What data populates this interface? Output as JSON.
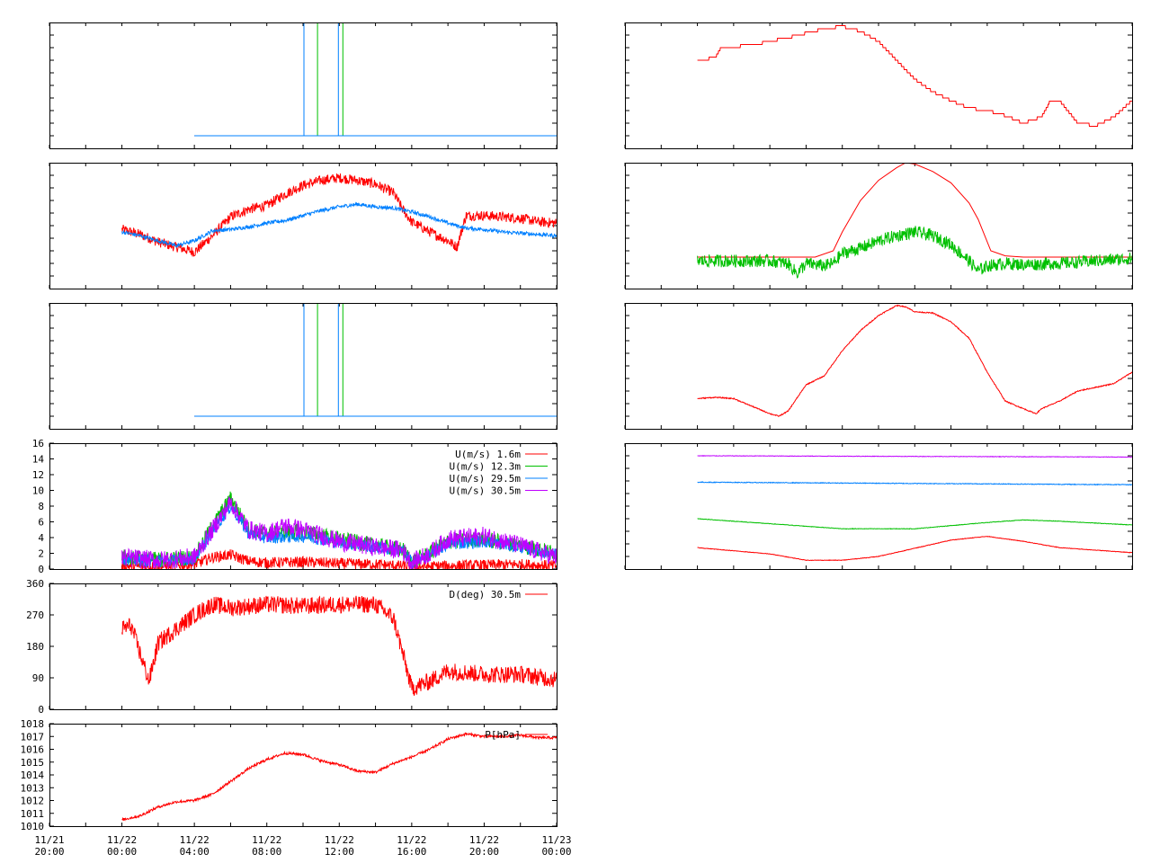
{
  "colors": {
    "red": "#ff0000",
    "green": "#00c000",
    "blue": "#0080ff",
    "purple": "#c000ff",
    "axis": "#000000",
    "background": "#ffffff"
  },
  "x_axis": {
    "tick_labels": [
      [
        "11/21",
        "20:00"
      ],
      [
        "11/22",
        "00:00"
      ],
      [
        "11/22",
        "04:00"
      ],
      [
        "11/22",
        "08:00"
      ],
      [
        "11/22",
        "12:00"
      ],
      [
        "11/22",
        "16:00"
      ],
      [
        "11/22",
        "20:00"
      ],
      [
        "11/23",
        "00:00"
      ]
    ]
  },
  "chart_data": [
    {
      "id": "left1",
      "type": "line",
      "xlim": [
        -4,
        24
      ],
      "ylim": [
        0,
        1
      ],
      "series": [
        {
          "color": "red",
          "x": [
            4,
            10.1,
            10.1,
            11.0,
            11.0,
            24
          ],
          "y": [
            0.1,
            0.1,
            0.1,
            0.1,
            0.1,
            0.1
          ]
        },
        {
          "color": "green",
          "x": [
            10.8,
            10.8,
            10.8,
            12.2,
            12.2,
            12.2
          ],
          "y": [
            0.1,
            1.0,
            0.1,
            0.1,
            1.0,
            0.1
          ]
        },
        {
          "color": "blue",
          "x": [
            4,
            10.05,
            10.05,
            10.05,
            11.95,
            11.95,
            11.95,
            24
          ],
          "y": [
            0.1,
            0.1,
            1.0,
            0.1,
            0.1,
            1.0,
            0.1,
            0.1
          ]
        }
      ]
    },
    {
      "id": "left2",
      "type": "line",
      "xlim": [
        -4,
        24
      ],
      "ylim": [
        0,
        1
      ],
      "series": [
        {
          "color": "red",
          "noise": 0.04,
          "x": [
            0,
            1,
            2,
            3,
            4,
            5,
            6,
            7,
            8,
            9,
            10,
            11,
            12,
            13,
            14,
            15,
            15.5,
            16,
            17,
            18,
            18.5,
            19,
            20,
            21,
            22,
            23,
            24
          ],
          "y": [
            0.47,
            0.43,
            0.37,
            0.33,
            0.29,
            0.42,
            0.57,
            0.63,
            0.66,
            0.75,
            0.82,
            0.86,
            0.88,
            0.86,
            0.83,
            0.76,
            0.63,
            0.53,
            0.45,
            0.38,
            0.33,
            0.58,
            0.58,
            0.57,
            0.56,
            0.53,
            0.52
          ]
        },
        {
          "color": "blue",
          "noise": 0.015,
          "x": [
            0,
            1,
            2,
            3,
            4,
            5,
            6,
            7,
            8,
            9,
            10,
            11,
            12,
            13,
            14,
            15,
            16,
            17,
            18,
            19,
            20,
            21,
            22,
            23,
            24
          ],
          "y": [
            0.45,
            0.42,
            0.38,
            0.34,
            0.38,
            0.46,
            0.47,
            0.49,
            0.52,
            0.54,
            0.58,
            0.62,
            0.65,
            0.67,
            0.65,
            0.64,
            0.61,
            0.57,
            0.52,
            0.48,
            0.47,
            0.45,
            0.44,
            0.43,
            0.42
          ]
        }
      ]
    },
    {
      "id": "left3",
      "type": "line",
      "xlim": [
        -4,
        24
      ],
      "ylim": [
        0,
        1
      ],
      "series": [
        {
          "color": "red",
          "x": [
            4,
            10.1,
            10.1,
            11.0,
            11.0,
            24
          ],
          "y": [
            0.1,
            0.1,
            0.1,
            0.1,
            0.1,
            0.1
          ]
        },
        {
          "color": "green",
          "x": [
            10.8,
            10.8,
            10.8,
            12.2,
            12.2,
            12.2
          ],
          "y": [
            0.1,
            1.0,
            0.1,
            0.1,
            1.0,
            0.1
          ]
        },
        {
          "color": "blue",
          "x": [
            4,
            10.05,
            10.05,
            10.05,
            11.95,
            11.95,
            11.95,
            24
          ],
          "y": [
            0.1,
            0.1,
            1.0,
            0.1,
            0.1,
            1.0,
            0.1,
            0.1
          ]
        }
      ]
    },
    {
      "id": "left4",
      "type": "line",
      "xlim": [
        -4,
        24
      ],
      "ylim": [
        0,
        16
      ],
      "y_ticks": [
        0,
        2,
        4,
        6,
        8,
        10,
        12,
        14,
        16
      ],
      "legend_position": "top-right",
      "series": [
        {
          "name": "U(m/s)  1.6m",
          "color": "red",
          "noise": 0.7,
          "x": [
            0,
            2,
            4,
            5,
            6,
            7,
            8,
            10,
            12,
            14,
            16,
            18,
            20,
            22,
            24
          ],
          "y": [
            0.4,
            0.3,
            0.6,
            1.5,
            1.8,
            1.0,
            0.8,
            0.9,
            0.7,
            0.6,
            0.3,
            0.4,
            0.5,
            0.6,
            0.4
          ]
        },
        {
          "name": "U(m/s) 12.3m",
          "color": "green",
          "noise": 1.0,
          "x": [
            0,
            2,
            4,
            5,
            6,
            7,
            8,
            10,
            12,
            14,
            15.5,
            16,
            17,
            18,
            20,
            22,
            24
          ],
          "y": [
            1.5,
            1.2,
            1.5,
            5.5,
            9.0,
            5.0,
            4.5,
            4.8,
            3.8,
            3.0,
            2.5,
            1.0,
            2.0,
            3.5,
            3.8,
            3.0,
            2.0
          ]
        },
        {
          "name": "U(m/s) 29.5m",
          "color": "blue",
          "noise": 0.8,
          "x": [
            0,
            2,
            4,
            5,
            6,
            7,
            8,
            10,
            12,
            14,
            15.5,
            16,
            17,
            18,
            20,
            22,
            24
          ],
          "y": [
            1.3,
            1.0,
            1.3,
            4.8,
            8.0,
            4.5,
            4.0,
            4.2,
            3.4,
            2.8,
            2.3,
            0.9,
            1.8,
            3.2,
            3.5,
            2.8,
            1.8
          ]
        },
        {
          "name": "U(m/s) 30.5m",
          "color": "purple",
          "noise": 1.2,
          "x": [
            0,
            2,
            4,
            5,
            6,
            7,
            8,
            9,
            10,
            12,
            14,
            15.5,
            16,
            17,
            18,
            20,
            22,
            24
          ],
          "y": [
            1.5,
            1.1,
            1.5,
            5.0,
            8.5,
            5.0,
            4.5,
            5.5,
            5.0,
            3.5,
            2.8,
            2.4,
            0.8,
            2.0,
            3.8,
            4.2,
            3.0,
            1.5
          ]
        }
      ]
    },
    {
      "id": "left5",
      "type": "line",
      "xlim": [
        -4,
        24
      ],
      "ylim": [
        0,
        360
      ],
      "y_ticks": [
        0,
        90,
        180,
        270,
        360
      ],
      "legend_position": "top-right",
      "series": [
        {
          "name": "D(deg)  30.5m",
          "color": "red",
          "noise": 25,
          "x": [
            0,
            0.5,
            1,
            1.5,
            2,
            3,
            4,
            5,
            6,
            8,
            10,
            12,
            14,
            15,
            16,
            17,
            18,
            20,
            22,
            24
          ],
          "y": [
            230,
            240,
            160,
            80,
            190,
            230,
            270,
            300,
            290,
            300,
            295,
            300,
            300,
            260,
            60,
            80,
            110,
            100,
            100,
            85
          ]
        }
      ]
    },
    {
      "id": "left6",
      "type": "line",
      "xlim": [
        -4,
        24
      ],
      "ylim": [
        1010,
        1018
      ],
      "y_ticks": [
        1010,
        1011,
        1012,
        1013,
        1014,
        1015,
        1016,
        1017,
        1018
      ],
      "legend_position": "top-right",
      "series": [
        {
          "name": "P[hPa]",
          "color": "red",
          "noise": 0.1,
          "x": [
            0,
            1,
            2,
            3,
            4,
            5,
            6,
            7,
            8,
            9,
            10,
            11,
            12,
            13,
            14,
            15,
            16,
            17,
            18,
            19,
            20,
            21,
            22,
            23,
            24
          ],
          "y": [
            1010.5,
            1010.8,
            1011.5,
            1011.9,
            1012.0,
            1012.5,
            1013.5,
            1014.5,
            1015.2,
            1015.7,
            1015.6,
            1015.1,
            1014.8,
            1014.3,
            1014.2,
            1014.9,
            1015.4,
            1016.0,
            1016.8,
            1017.2,
            1017.0,
            1017.0,
            1017.1,
            1016.9,
            1016.9
          ]
        }
      ]
    },
    {
      "id": "right1",
      "type": "line",
      "xlim": [
        -4,
        24
      ],
      "ylim": [
        0,
        1
      ],
      "series": [
        {
          "color": "red",
          "step": true,
          "noise": 0.01,
          "x": [
            0,
            1,
            1.3,
            3,
            5,
            7,
            8,
            9,
            10,
            11,
            12,
            13,
            14,
            15,
            16,
            17,
            18,
            19,
            19.5,
            20,
            21,
            22,
            23,
            24
          ],
          "y": [
            0.7,
            0.72,
            0.8,
            0.82,
            0.88,
            0.95,
            0.97,
            0.93,
            0.85,
            0.7,
            0.55,
            0.45,
            0.38,
            0.32,
            0.3,
            0.26,
            0.2,
            0.25,
            0.38,
            0.38,
            0.2,
            0.18,
            0.25,
            0.38
          ]
        }
      ]
    },
    {
      "id": "right2",
      "type": "line",
      "xlim": [
        -4,
        24
      ],
      "ylim": [
        0,
        1
      ],
      "series": [
        {
          "color": "red",
          "x": [
            0,
            6.5,
            7.5,
            8,
            9,
            10,
            11,
            11.5,
            12,
            13,
            14,
            15,
            15.5,
            16.2,
            17,
            18,
            20,
            22,
            24
          ],
          "y": [
            0.25,
            0.25,
            0.3,
            0.45,
            0.7,
            0.86,
            0.96,
            1.0,
            0.99,
            0.93,
            0.84,
            0.68,
            0.55,
            0.3,
            0.26,
            0.25,
            0.25,
            0.25,
            0.25
          ]
        },
        {
          "color": "green",
          "noise": 0.05,
          "x": [
            0,
            4,
            5,
            5.5,
            6,
            7,
            7.5,
            8,
            9,
            10,
            11,
            12,
            13,
            14,
            15,
            15.5,
            16,
            17,
            18,
            20,
            22,
            24
          ],
          "y": [
            0.22,
            0.22,
            0.2,
            0.12,
            0.2,
            0.18,
            0.2,
            0.28,
            0.32,
            0.38,
            0.42,
            0.45,
            0.42,
            0.35,
            0.22,
            0.14,
            0.18,
            0.2,
            0.19,
            0.2,
            0.22,
            0.24
          ]
        }
      ]
    },
    {
      "id": "right3",
      "type": "line",
      "xlim": [
        -4,
        24
      ],
      "ylim": [
        0,
        1
      ],
      "series": [
        {
          "color": "red",
          "noise": 0.004,
          "x": [
            0,
            1,
            2,
            3,
            4,
            4.5,
            5,
            6,
            7,
            8,
            9,
            10,
            11,
            11.5,
            12,
            13,
            14,
            15,
            16,
            17,
            18,
            18.7,
            19,
            20,
            21,
            22,
            23,
            24
          ],
          "y": [
            0.24,
            0.25,
            0.24,
            0.18,
            0.12,
            0.1,
            0.14,
            0.35,
            0.42,
            0.62,
            0.78,
            0.9,
            0.98,
            0.97,
            0.93,
            0.92,
            0.85,
            0.72,
            0.45,
            0.22,
            0.16,
            0.12,
            0.16,
            0.22,
            0.3,
            0.33,
            0.36,
            0.45
          ]
        }
      ]
    },
    {
      "id": "right4",
      "type": "line",
      "xlim": [
        -4,
        24
      ],
      "ylim": [
        0,
        1
      ],
      "series": [
        {
          "color": "purple",
          "noise": 0.002,
          "x": [
            0,
            24
          ],
          "y": [
            0.9,
            0.89
          ]
        },
        {
          "color": "blue",
          "noise": 0.003,
          "x": [
            0,
            24
          ],
          "y": [
            0.69,
            0.67
          ]
        },
        {
          "color": "green",
          "noise": 0.002,
          "x": [
            0,
            4,
            8,
            12,
            16,
            18,
            20,
            24
          ],
          "y": [
            0.4,
            0.36,
            0.32,
            0.32,
            0.37,
            0.39,
            0.38,
            0.35
          ]
        },
        {
          "color": "red",
          "noise": 0.002,
          "x": [
            0,
            4,
            6,
            8,
            10,
            14,
            16,
            18,
            20,
            24
          ],
          "y": [
            0.17,
            0.12,
            0.07,
            0.07,
            0.1,
            0.23,
            0.26,
            0.22,
            0.17,
            0.13
          ]
        }
      ]
    }
  ]
}
